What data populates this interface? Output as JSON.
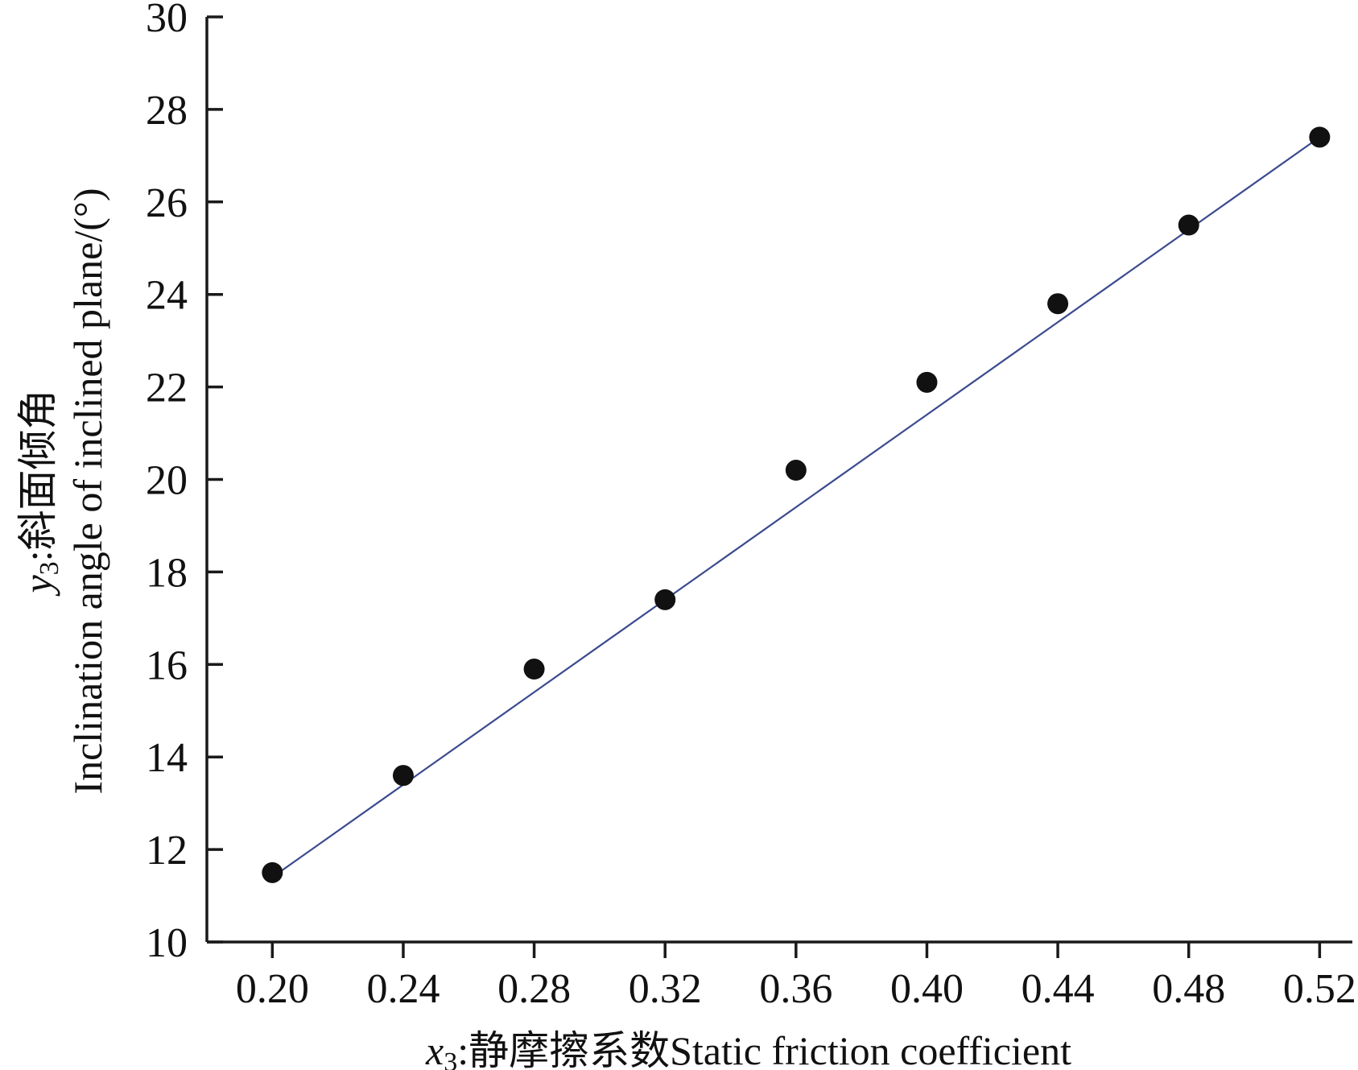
{
  "chart_data": {
    "type": "scatter",
    "title": "",
    "x": [
      0.2,
      0.24,
      0.28,
      0.32,
      0.36,
      0.4,
      0.44,
      0.48,
      0.52
    ],
    "y": [
      11.5,
      13.6,
      15.9,
      17.4,
      20.2,
      22.1,
      23.8,
      25.5,
      27.4
    ],
    "fit_line": {
      "x": [
        0.2,
        0.52
      ],
      "y": [
        11.4,
        27.4
      ]
    },
    "xlim": [
      0.18,
      0.53
    ],
    "ylim": [
      10,
      30
    ],
    "xticks": [
      "0.20",
      "0.24",
      "0.28",
      "0.32",
      "0.36",
      "0.40",
      "0.44",
      "0.48",
      "0.52"
    ],
    "yticks": [
      "10",
      "12",
      "14",
      "16",
      "18",
      "20",
      "22",
      "24",
      "26",
      "28",
      "30"
    ],
    "xlabel": {
      "var": "x",
      "sub": "3",
      "text": ":静摩擦系数Static friction coefficient"
    },
    "ylabel": {
      "var": "y",
      "sub": "3",
      "line1": ":斜面倾角",
      "line2": "Inclination angle of inclined plane/(°)"
    },
    "grid": false,
    "colors": {
      "points": "#111111",
      "fit_line": "#3b4a8f",
      "axes": "#1a1a1a"
    }
  }
}
